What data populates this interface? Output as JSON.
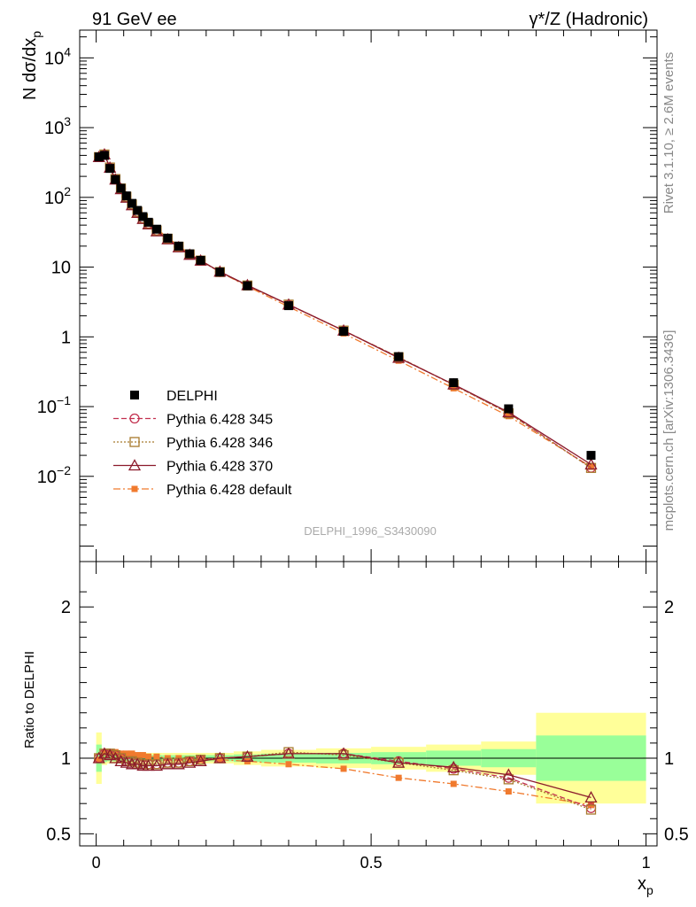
{
  "header": {
    "left": "91 GeV ee",
    "right": "γ*/Z (Hadronic)"
  },
  "side_labels": {
    "rivet": "Rivet 3.1.10, ≥ 2.6M events",
    "mcplots": "mcplots.cern.ch [arXiv:1306.3436]"
  },
  "watermark": "DELPHI_1996_S3430090",
  "colors": {
    "delphi": "#000000",
    "p345": "#c2304f",
    "p346": "#a87a2d",
    "p370": "#8b1a2b",
    "pdef": "#f07a2e",
    "band_inner": "#99ff99",
    "band_outer": "#ffff99"
  },
  "chart_data": [
    {
      "type": "scatter",
      "title": "",
      "xlabel": "",
      "ylabel_main": "N dσ/dx",
      "ylabel_sub": "p",
      "yscale": "log",
      "xlim": [
        -0.03,
        1.02
      ],
      "ylim": [
        0.0006,
        25000
      ],
      "y_tick_labels": [
        {
          "base": "10",
          "exp": "−2"
        },
        {
          "base": "10",
          "exp": "−1"
        },
        {
          "text": "1"
        },
        {
          "text": "10"
        },
        {
          "base": "10",
          "exp": "2"
        },
        {
          "base": "10",
          "exp": "3"
        },
        {
          "base": "10",
          "exp": "4"
        }
      ],
      "legend_position": "lower-left",
      "x": [
        0.005,
        0.015,
        0.025,
        0.035,
        0.045,
        0.055,
        0.065,
        0.075,
        0.085,
        0.095,
        0.11,
        0.13,
        0.15,
        0.17,
        0.19,
        0.225,
        0.275,
        0.35,
        0.45,
        0.55,
        0.65,
        0.75,
        0.9
      ],
      "series": [
        {
          "name": "DELPHI",
          "key": "delphi",
          "marker": "filled-square",
          "line": "none",
          "values": [
            380,
            400,
            260,
            180,
            135,
            105,
            82,
            65,
            53,
            44,
            35,
            26,
            20,
            15.5,
            12.5,
            8.5,
            5.4,
            2.8,
            1.2,
            0.52,
            0.22,
            0.093,
            0.02
          ]
        },
        {
          "name": "Pythia 6.428 345",
          "key": "p345",
          "marker": "open-circle",
          "line": "dashed",
          "values": [
            378,
            412,
            268,
            183,
            134,
            102,
            79,
            62,
            50,
            42,
            33.5,
            25.5,
            19.6,
            15.2,
            12.4,
            8.5,
            5.45,
            2.9,
            1.23,
            0.51,
            0.205,
            0.081,
            0.0133
          ]
        },
        {
          "name": "Pythia 6.428 346",
          "key": "p346",
          "marker": "open-square",
          "line": "dotted",
          "values": [
            378,
            412,
            268,
            183,
            134,
            102,
            79,
            62,
            50,
            42,
            33.5,
            25.5,
            19.6,
            15.2,
            12.4,
            8.5,
            5.45,
            2.9,
            1.23,
            0.51,
            0.205,
            0.08,
            0.0132
          ]
        },
        {
          "name": "Pythia 6.428 370",
          "key": "p370",
          "marker": "open-triangle",
          "line": "solid",
          "values": [
            378,
            412,
            266,
            180,
            131,
            99,
            77,
            60,
            49,
            41,
            32.5,
            25,
            19.2,
            15,
            12.4,
            8.6,
            5.5,
            2.9,
            1.23,
            0.5,
            0.208,
            0.083,
            0.0148
          ]
        },
        {
          "name": "Pythia 6.428 default",
          "key": "pdef",
          "marker": "filled-square-small",
          "line": "dashdot",
          "values": [
            376,
            414,
            268,
            184,
            137,
            107,
            84,
            66,
            54,
            44.5,
            35.5,
            26.5,
            20.2,
            15.5,
            12.5,
            8.5,
            5.3,
            2.7,
            1.12,
            0.455,
            0.183,
            0.073,
            0.0137
          ]
        }
      ]
    },
    {
      "type": "line",
      "title": "",
      "xlabel_main": "x",
      "xlabel_sub": "p",
      "ylabel": "Ratio to DELPHI",
      "xlim": [
        -0.03,
        1.02
      ],
      "ylim": [
        0.42,
        2.3
      ],
      "x_ticks": [
        0,
        0.5,
        1
      ],
      "x_tick_labels": [
        "0",
        "0.5",
        "1"
      ],
      "y_ticks": [
        0.5,
        1,
        2
      ],
      "y_tick_labels": [
        "0.5",
        "1",
        "2"
      ],
      "x": [
        0.005,
        0.015,
        0.025,
        0.035,
        0.045,
        0.055,
        0.065,
        0.075,
        0.085,
        0.095,
        0.11,
        0.13,
        0.15,
        0.17,
        0.19,
        0.225,
        0.275,
        0.35,
        0.45,
        0.55,
        0.65,
        0.75,
        0.9
      ],
      "bands": {
        "edges": [
          0.0,
          0.01,
          0.02,
          0.03,
          0.04,
          0.05,
          0.06,
          0.07,
          0.08,
          0.09,
          0.1,
          0.12,
          0.14,
          0.16,
          0.18,
          0.2,
          0.25,
          0.3,
          0.4,
          0.5,
          0.6,
          0.7,
          0.8,
          1.0
        ],
        "inner": [
          0.09,
          0.025,
          0.02,
          0.02,
          0.02,
          0.02,
          0.02,
          0.02,
          0.02,
          0.02,
          0.02,
          0.02,
          0.02,
          0.02,
          0.02,
          0.02,
          0.025,
          0.03,
          0.035,
          0.04,
          0.05,
          0.06,
          0.15
        ],
        "outer": [
          0.17,
          0.045,
          0.035,
          0.035,
          0.035,
          0.035,
          0.035,
          0.035,
          0.035,
          0.035,
          0.035,
          0.035,
          0.035,
          0.035,
          0.035,
          0.035,
          0.045,
          0.055,
          0.065,
          0.075,
          0.09,
          0.11,
          0.3
        ]
      },
      "series": [
        {
          "name": "Pythia 6.428 345",
          "key": "p345",
          "marker": "open-circle",
          "line": "dashed",
          "values": [
            1.0,
            1.03,
            1.03,
            1.02,
            1.0,
            0.98,
            0.98,
            0.97,
            0.96,
            0.96,
            0.96,
            0.97,
            0.97,
            0.98,
            0.99,
            1.0,
            1.01,
            1.03,
            1.03,
            0.98,
            0.93,
            0.87,
            0.67
          ]
        },
        {
          "name": "Pythia 6.428 346",
          "key": "p346",
          "marker": "open-square",
          "line": "dotted",
          "values": [
            1.0,
            1.03,
            1.03,
            1.02,
            1.0,
            0.98,
            0.98,
            0.97,
            0.96,
            0.96,
            0.96,
            0.97,
            0.97,
            0.98,
            0.99,
            1.0,
            1.01,
            1.04,
            1.02,
            0.97,
            0.92,
            0.86,
            0.66
          ]
        },
        {
          "name": "Pythia 6.428 370",
          "key": "p370",
          "marker": "open-triangle",
          "line": "solid",
          "values": [
            1.0,
            1.03,
            1.02,
            1.0,
            0.98,
            0.97,
            0.96,
            0.96,
            0.95,
            0.95,
            0.95,
            0.96,
            0.96,
            0.97,
            0.98,
            1.0,
            1.01,
            1.03,
            1.03,
            0.97,
            0.94,
            0.89,
            0.74
          ]
        },
        {
          "name": "Pythia 6.428 default",
          "key": "pdef",
          "marker": "filled-square-small",
          "line": "dashdot",
          "values": [
            0.99,
            1.04,
            1.04,
            1.04,
            1.03,
            1.03,
            1.03,
            1.02,
            1.02,
            1.01,
            1.01,
            1.0,
            1.0,
            0.99,
            0.99,
            0.99,
            0.98,
            0.96,
            0.93,
            0.87,
            0.83,
            0.78,
            0.69
          ]
        }
      ]
    }
  ]
}
